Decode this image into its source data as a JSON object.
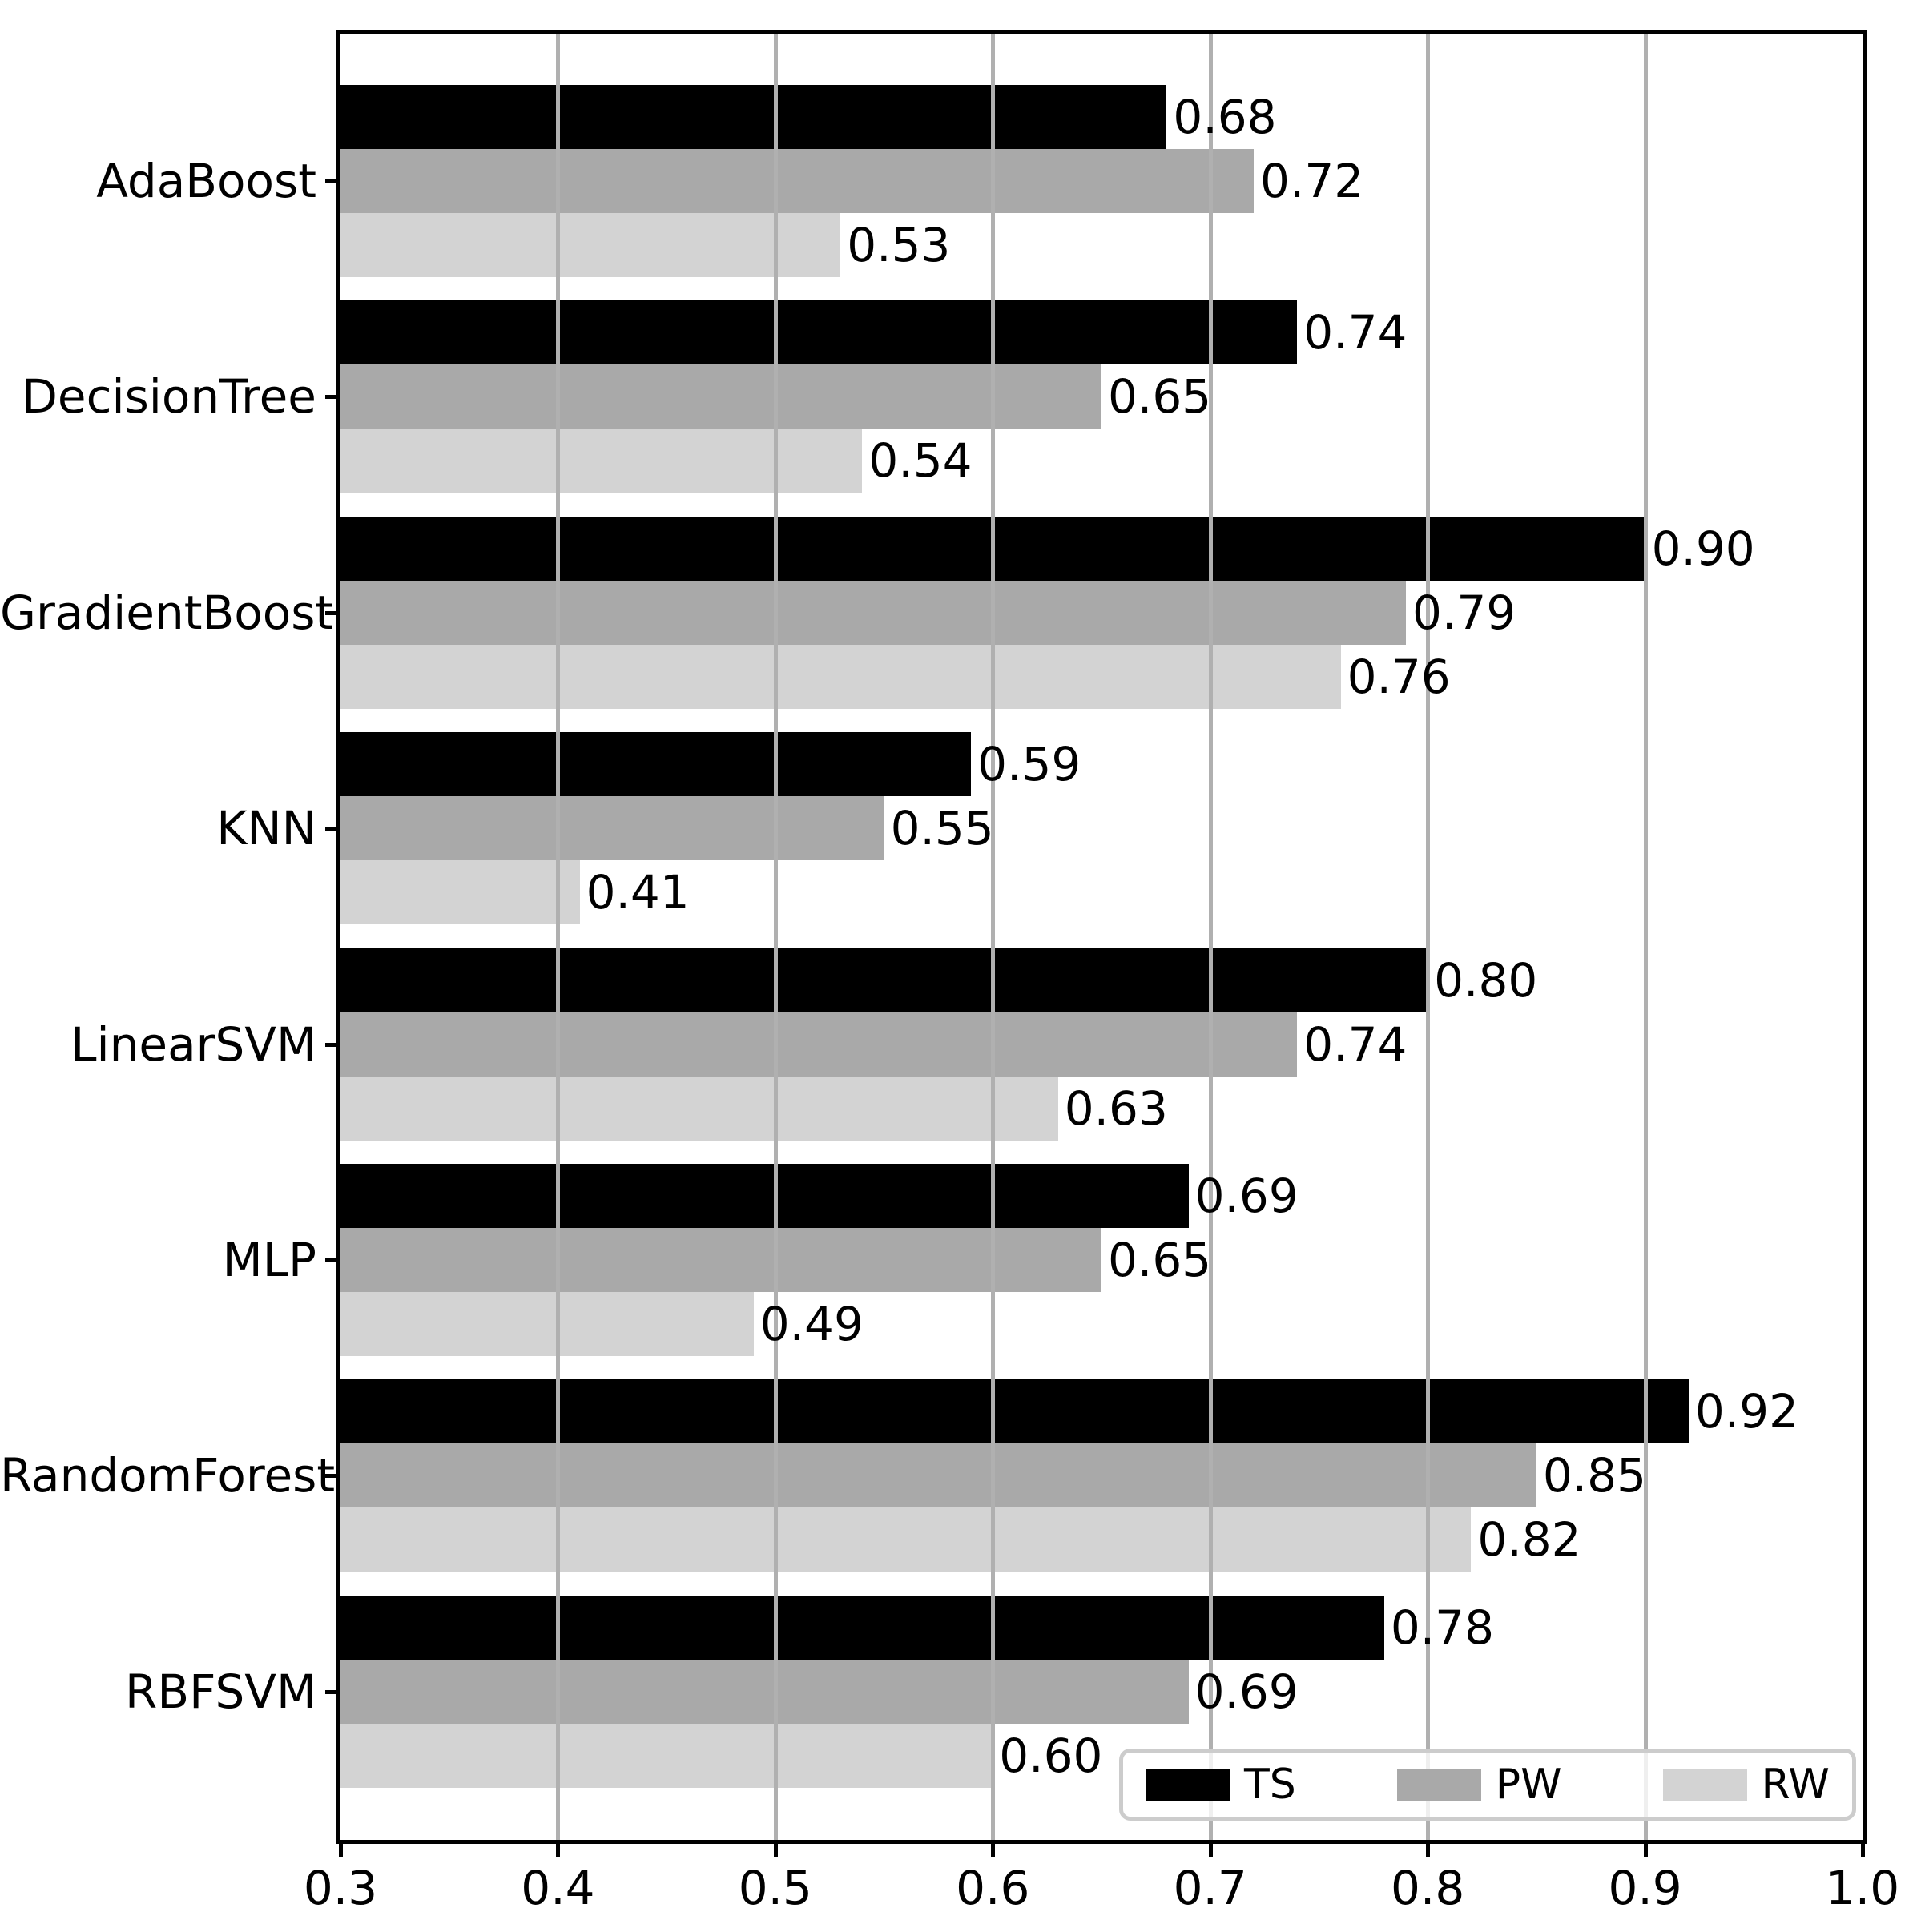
{
  "chart_data": {
    "type": "bar",
    "orientation": "horizontal",
    "title": "",
    "xlabel": "",
    "ylabel": "",
    "categories": [
      "AdaBoost",
      "DecisionTree",
      "GradientBoost",
      "KNN",
      "LinearSVM",
      "MLP",
      "RandomForest",
      "RBFSVM"
    ],
    "series": [
      {
        "name": "TS",
        "color": "#000000",
        "values": [
          0.68,
          0.74,
          0.9,
          0.59,
          0.8,
          0.69,
          0.92,
          0.78
        ]
      },
      {
        "name": "PW",
        "color": "#a9a9a9",
        "values": [
          0.72,
          0.65,
          0.79,
          0.55,
          0.74,
          0.65,
          0.85,
          0.69
        ]
      },
      {
        "name": "RW",
        "color": "#d3d3d3",
        "values": [
          0.53,
          0.54,
          0.76,
          0.41,
          0.63,
          0.49,
          0.82,
          0.6
        ]
      }
    ],
    "xlim": [
      0.3,
      1.0
    ],
    "xticks": [
      0.3,
      0.4,
      0.5,
      0.6,
      0.7,
      0.8,
      0.9,
      1.0
    ],
    "xtick_labels": [
      "0.3",
      "0.4",
      "0.5",
      "0.6",
      "0.7",
      "0.8",
      "0.9",
      "1.0"
    ],
    "value_label_decimals": 2,
    "grid": "vertical",
    "grid_color": "#b0b0b0",
    "bar_label_color": "#000000",
    "legend": {
      "position": "lower right",
      "entries": [
        "TS",
        "PW",
        "RW"
      ],
      "border_color": "#cccccc",
      "background": "rgba(255,255,255,0.8)"
    }
  }
}
